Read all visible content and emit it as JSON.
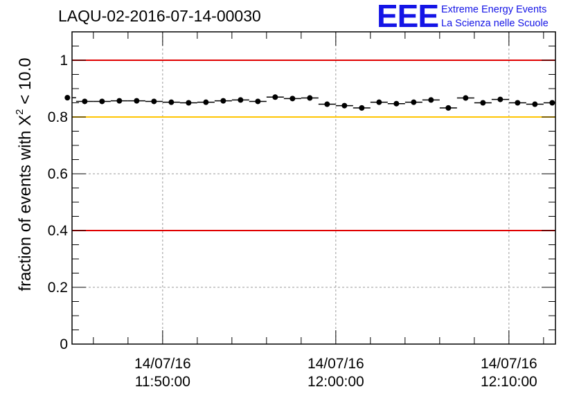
{
  "title": "LAQU-02-2016-07-14-00030",
  "logo": {
    "mark": "EEE",
    "line1": "Extreme Energy Events",
    "line2": "La Scienza nelle Scuole"
  },
  "chart_data": {
    "type": "scatter",
    "ylabel": "fraction of events with X² < 10.0",
    "ylabel_main": "fraction of events with X",
    "ylabel_sup": "2",
    "ylabel_tail": " < 10.0",
    "ylim": [
      0,
      1.1
    ],
    "y_ticks": [
      0,
      0.2,
      0.4,
      0.6,
      0.8,
      1
    ],
    "y_tick_labels": [
      "0",
      "0.2",
      "0.4",
      "0.6",
      "0.8",
      "1"
    ],
    "x_ticks": [
      {
        "date": "14/07/16",
        "time": "11:50:00"
      },
      {
        "date": "14/07/16",
        "time": "12:00:00"
      },
      {
        "date": "14/07/16",
        "time": "12:10:00"
      }
    ],
    "grid": true,
    "reference_lines": [
      {
        "y": 1.0,
        "color": "#e00000"
      },
      {
        "y": 0.8,
        "color": "#ffc400"
      },
      {
        "y": 0.4,
        "color": "#e00000"
      }
    ],
    "marker_color": "#000000",
    "x": [
      "11:44:30",
      "11:45:30",
      "11:46:30",
      "11:47:30",
      "11:48:30",
      "11:49:30",
      "11:50:30",
      "11:51:30",
      "11:52:30",
      "11:53:30",
      "11:54:30",
      "11:55:30",
      "11:56:30",
      "11:57:30",
      "11:58:30",
      "11:59:30",
      "12:00:30",
      "12:01:30",
      "12:02:30",
      "12:03:30",
      "12:04:30",
      "12:05:30",
      "12:06:30",
      "12:07:30",
      "12:08:30",
      "12:09:30",
      "12:10:30",
      "12:11:30",
      "12:12:30"
    ],
    "values": [
      0.868,
      0.855,
      0.855,
      0.857,
      0.857,
      0.855,
      0.852,
      0.85,
      0.852,
      0.857,
      0.86,
      0.855,
      0.87,
      0.865,
      0.867,
      0.845,
      0.84,
      0.832,
      0.852,
      0.847,
      0.852,
      0.86,
      0.832,
      0.867,
      0.85,
      0.862,
      0.85,
      0.845,
      0.85
    ]
  }
}
